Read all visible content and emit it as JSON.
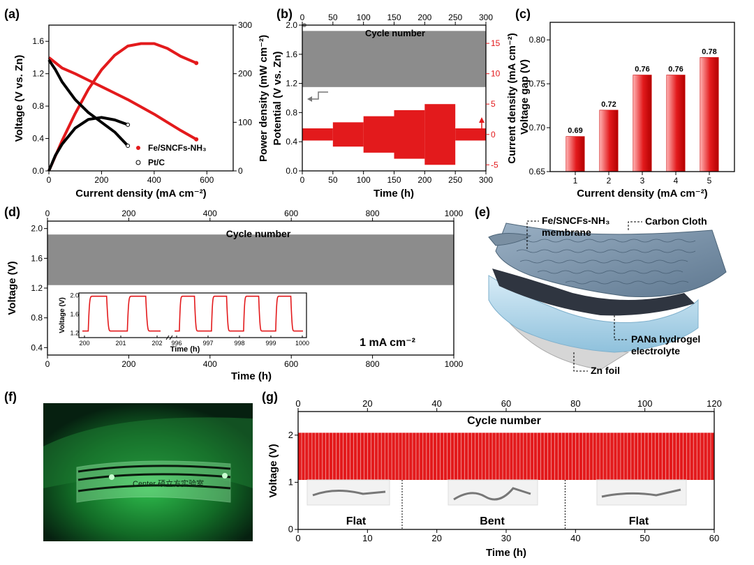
{
  "panel_labels": {
    "a": "(a)",
    "b": "(b)",
    "c": "(c)",
    "d": "(d)",
    "e": "(e)",
    "f": "(f)",
    "g": "(g)"
  },
  "colors": {
    "red": "#e31a1c",
    "black": "#000000",
    "gray": "#8c8c8c",
    "green_bg": "#0b2a12"
  },
  "chart_data": [
    {
      "panel": "a",
      "type": "line",
      "xlabel": "Current density (mA cm⁻²)",
      "ylabel_left": "Voltage (V vs. Zn)",
      "ylabel_right": "Power density (mW cm⁻²)",
      "xlim": [
        0,
        700
      ],
      "ylim_left": [
        0,
        1.8
      ],
      "ylim_right": [
        0,
        300
      ],
      "xticks": [
        "0",
        "200",
        "400",
        "600"
      ],
      "yticks_left": [
        "0.0",
        "0.4",
        "0.8",
        "1.2",
        "1.6"
      ],
      "yticks_right": [
        "0",
        "100",
        "200",
        "300"
      ],
      "legend": [
        "Fe/SNCFs-NH₃",
        "Pt/C"
      ],
      "series": [
        {
          "name": "Fe/SNCFs-NH₃",
          "kind": "voltage",
          "x": [
            0,
            50,
            100,
            150,
            200,
            250,
            300,
            350,
            400,
            450,
            500,
            560
          ],
          "y": [
            1.4,
            1.27,
            1.2,
            1.12,
            1.04,
            0.96,
            0.88,
            0.79,
            0.7,
            0.6,
            0.5,
            0.39
          ]
        },
        {
          "name": "Fe/SNCFs-NH₃",
          "kind": "power",
          "x": [
            0,
            50,
            100,
            150,
            200,
            250,
            300,
            350,
            400,
            450,
            500,
            560
          ],
          "y": [
            0,
            62,
            118,
            168,
            208,
            238,
            257,
            262,
            262,
            252,
            236,
            222
          ]
        },
        {
          "name": "Pt/C",
          "kind": "voltage",
          "x": [
            0,
            25,
            50,
            100,
            150,
            200,
            250,
            300
          ],
          "y": [
            1.37,
            1.25,
            1.1,
            0.88,
            0.72,
            0.6,
            0.48,
            0.31
          ]
        },
        {
          "name": "Pt/C",
          "kind": "power",
          "x": [
            0,
            25,
            50,
            100,
            150,
            200,
            250,
            300
          ],
          "y": [
            0,
            32,
            55,
            88,
            106,
            110,
            105,
            95
          ]
        }
      ]
    },
    {
      "panel": "b",
      "type": "band",
      "xlabel": "Time (h)",
      "x2label": "Cycle number",
      "ylabel_left": "Potential (V vs. Zn)",
      "ylabel_right": "Current density (mA cm⁻²)",
      "xlim": [
        0,
        300
      ],
      "ylim_left": [
        0,
        2.0
      ],
      "ylim_right": [
        -6,
        18
      ],
      "xticks": [
        "0",
        "50",
        "100",
        "150",
        "200",
        "250",
        "300"
      ],
      "x2ticks": [
        "0",
        "50",
        "100",
        "150",
        "200",
        "250",
        "300"
      ],
      "yticks_left": [
        "0.0",
        "0.4",
        "0.8",
        "1.2",
        "1.6",
        "2.0"
      ],
      "yticks_right": [
        "-5",
        "0",
        "5",
        "10",
        "15"
      ],
      "voltage_band": {
        "upper": 1.92,
        "lower": 1.15
      },
      "current_steps": [
        {
          "t0": 0,
          "t1": 50,
          "amp": 1
        },
        {
          "t0": 50,
          "t1": 100,
          "amp": 2
        },
        {
          "t0": 100,
          "t1": 150,
          "amp": 3
        },
        {
          "t0": 150,
          "t1": 200,
          "amp": 4
        },
        {
          "t0": 200,
          "t1": 250,
          "amp": 5
        },
        {
          "t0": 250,
          "t1": 300,
          "amp": 1
        }
      ]
    },
    {
      "panel": "c",
      "type": "bar",
      "xlabel": "Current density (mA cm⁻²)",
      "ylabel": "Voltage gap (V)",
      "categories": [
        "1",
        "2",
        "3",
        "4",
        "5"
      ],
      "values": [
        0.69,
        0.72,
        0.76,
        0.76,
        0.78
      ],
      "value_labels": [
        "0.69",
        "0.72",
        "0.76",
        "0.76",
        "0.78"
      ],
      "ylim": [
        0.65,
        0.82
      ],
      "yticks": [
        "0.65",
        "0.70",
        "0.75",
        "0.80"
      ]
    },
    {
      "panel": "d",
      "type": "band",
      "xlabel": "Time (h)",
      "x2label": "Cycle number",
      "ylabel": "Voltage (V)",
      "annotation": "1 mA cm⁻²",
      "xlim": [
        0,
        1000
      ],
      "ylim": [
        0.3,
        2.1
      ],
      "xticks": [
        "0",
        "200",
        "400",
        "600",
        "800",
        "1000"
      ],
      "x2ticks": [
        "0",
        "200",
        "400",
        "600",
        "800",
        "1000"
      ],
      "yticks": [
        "0.4",
        "0.8",
        "1.2",
        "1.6",
        "2.0"
      ],
      "voltage_band": {
        "upper": 1.92,
        "lower": 1.24
      },
      "inset": {
        "xlabel": "Time (h)",
        "ylabel": "Voltage (V)",
        "xticks_left": [
          "200",
          "201",
          "202"
        ],
        "xticks_right": [
          "996",
          "997",
          "998",
          "999",
          "1000"
        ],
        "yticks": [
          "1.2",
          "1.6",
          "2.0"
        ]
      }
    },
    {
      "panel": "g",
      "type": "band",
      "xlabel": "Time (h)",
      "x2label": "Cycle number",
      "ylabel": "Voltage (V)",
      "xlim": [
        0,
        60
      ],
      "ylim": [
        0,
        2.5
      ],
      "xticks": [
        "0",
        "10",
        "20",
        "30",
        "40",
        "50",
        "60"
      ],
      "x2ticks": [
        "0",
        "20",
        "40",
        "60",
        "80",
        "100",
        "120"
      ],
      "yticks": [
        "0",
        "1",
        "2"
      ],
      "voltage_band": {
        "upper": 2.05,
        "lower": 1.05
      },
      "cycles": 120,
      "states": [
        "Flat",
        "Bent",
        "Flat"
      ],
      "state_boundaries_h": [
        15,
        38.5
      ]
    }
  ],
  "diagram_e": {
    "labels": {
      "membrane": "Fe/SNCFs-NH₃",
      "membrane2": "membrane",
      "cloth": "Carbon Cloth",
      "gel": "PANa hydrogel",
      "gel2": "electrolyte",
      "zn": "Zn foil"
    }
  },
  "photo_f": {
    "text": "Center 硕立方实验室"
  }
}
